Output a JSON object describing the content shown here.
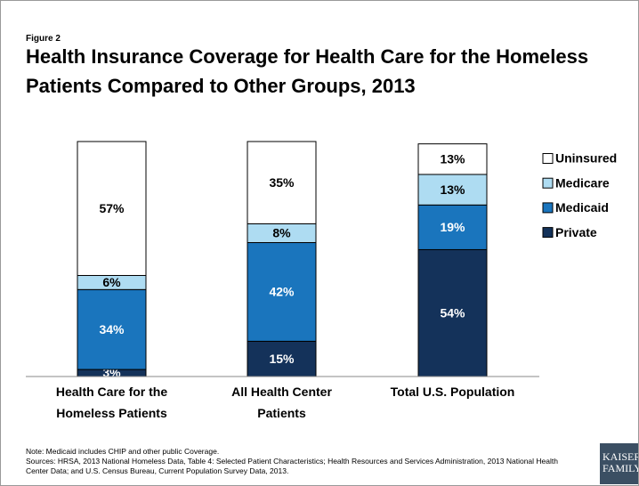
{
  "chart_data": {
    "type": "stacked_bar",
    "figure_label": "Figure 2",
    "title": "Health Insurance Coverage for Health Care for the Homeless Patients Compared to Other Groups, 2013",
    "categories": [
      "Health Care for the Homeless Patients",
      "All Health Center Patients",
      "Total U.S. Population"
    ],
    "series": [
      {
        "name": "Private",
        "color": "#14325a",
        "values": [
          3,
          15,
          54
        ],
        "value_labels": [
          "3%",
          "15%",
          "54%"
        ]
      },
      {
        "name": "Medicaid",
        "color": "#1a75bd",
        "values": [
          34,
          42,
          19
        ],
        "value_labels": [
          "34%",
          "42%",
          "19%"
        ]
      },
      {
        "name": "Medicare",
        "color": "#aedcf2",
        "values": [
          6,
          8,
          13
        ],
        "value_labels": [
          "6%",
          "8%",
          "13%"
        ]
      },
      {
        "name": "Uninsured",
        "color": "#ffffff",
        "values": [
          57,
          35,
          13
        ],
        "value_labels": [
          "57%",
          "35%",
          "13%"
        ]
      }
    ],
    "ylim": [
      0,
      100
    ],
    "legend": "right",
    "note": "Note: Medicaid includes CHIP and other public Coverage.",
    "sources": "Sources: HRSA, 2013 National Homeless Data, Table 4: Selected Patient Characteristics; Health Resources and Services Administration, 2013 National Health Center Data; and U.S. Census Bureau, Current Population Survey Data, 2013.",
    "logo": [
      "KAISER",
      "FAMILY"
    ]
  }
}
